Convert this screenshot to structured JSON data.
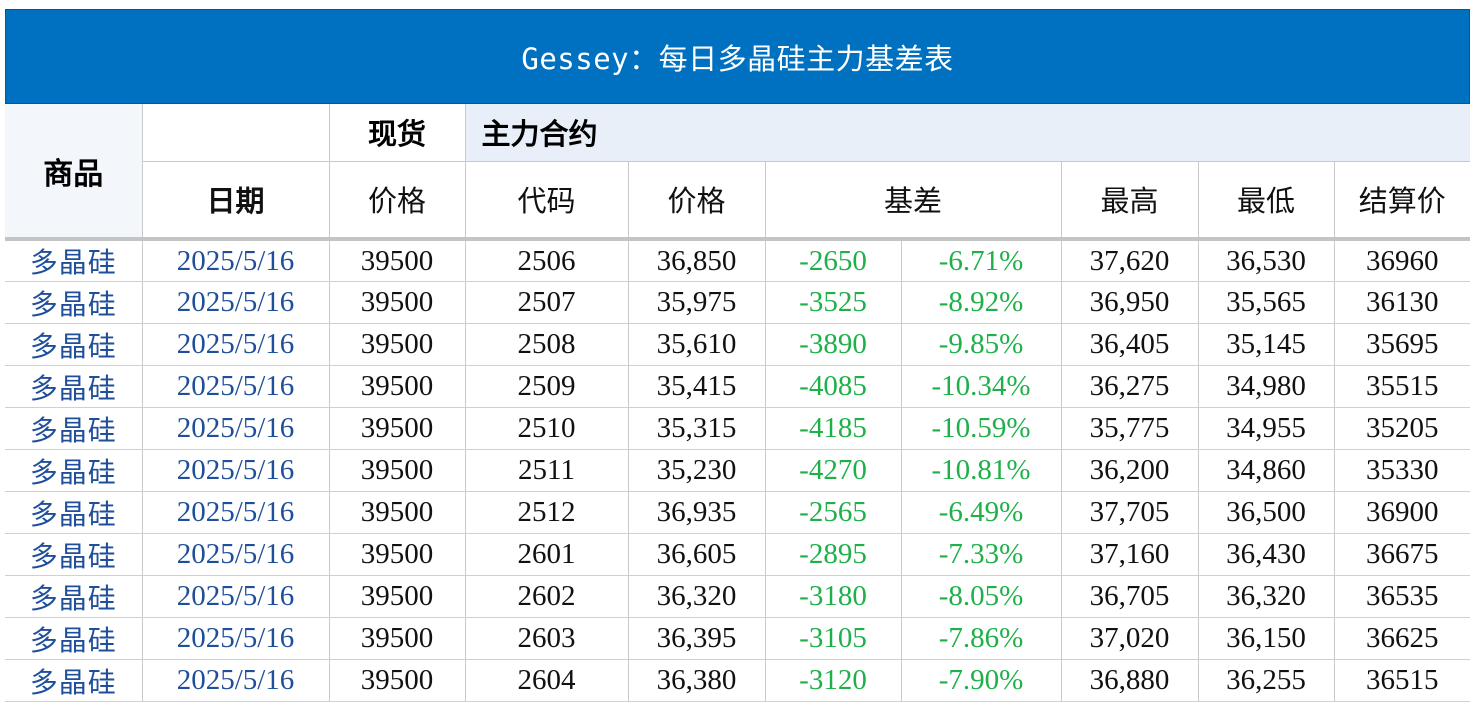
{
  "title": "Gessey：每日多晶硅主力基差表",
  "header": {
    "commodity": "商品",
    "spot_group": "现货",
    "main_group": "主力合约",
    "date": "日期",
    "spot_price": "价格",
    "code": "代码",
    "price": "价格",
    "basis": "基差",
    "high": "最高",
    "low": "最低",
    "settle": "结算价"
  },
  "rows": [
    {
      "name": "多晶硅",
      "date": "2025/5/16",
      "spot": "39500",
      "code": "2506",
      "price": "36,850",
      "basis": "-2650",
      "basis_pct": "-6.71%",
      "high": "37,620",
      "low": "36,530",
      "settle": "36960"
    },
    {
      "name": "多晶硅",
      "date": "2025/5/16",
      "spot": "39500",
      "code": "2507",
      "price": "35,975",
      "basis": "-3525",
      "basis_pct": "-8.92%",
      "high": "36,950",
      "low": "35,565",
      "settle": "36130"
    },
    {
      "name": "多晶硅",
      "date": "2025/5/16",
      "spot": "39500",
      "code": "2508",
      "price": "35,610",
      "basis": "-3890",
      "basis_pct": "-9.85%",
      "high": "36,405",
      "low": "35,145",
      "settle": "35695"
    },
    {
      "name": "多晶硅",
      "date": "2025/5/16",
      "spot": "39500",
      "code": "2509",
      "price": "35,415",
      "basis": "-4085",
      "basis_pct": "-10.34%",
      "high": "36,275",
      "low": "34,980",
      "settle": "35515"
    },
    {
      "name": "多晶硅",
      "date": "2025/5/16",
      "spot": "39500",
      "code": "2510",
      "price": "35,315",
      "basis": "-4185",
      "basis_pct": "-10.59%",
      "high": "35,775",
      "low": "34,955",
      "settle": "35205"
    },
    {
      "name": "多晶硅",
      "date": "2025/5/16",
      "spot": "39500",
      "code": "2511",
      "price": "35,230",
      "basis": "-4270",
      "basis_pct": "-10.81%",
      "high": "36,200",
      "low": "34,860",
      "settle": "35330"
    },
    {
      "name": "多晶硅",
      "date": "2025/5/16",
      "spot": "39500",
      "code": "2512",
      "price": "36,935",
      "basis": "-2565",
      "basis_pct": "-6.49%",
      "high": "37,705",
      "low": "36,500",
      "settle": "36900"
    },
    {
      "name": "多晶硅",
      "date": "2025/5/16",
      "spot": "39500",
      "code": "2601",
      "price": "36,605",
      "basis": "-2895",
      "basis_pct": "-7.33%",
      "high": "37,160",
      "low": "36,430",
      "settle": "36675"
    },
    {
      "name": "多晶硅",
      "date": "2025/5/16",
      "spot": "39500",
      "code": "2602",
      "price": "36,320",
      "basis": "-3180",
      "basis_pct": "-8.05%",
      "high": "36,705",
      "low": "36,320",
      "settle": "36535"
    },
    {
      "name": "多晶硅",
      "date": "2025/5/16",
      "spot": "39500",
      "code": "2603",
      "price": "36,395",
      "basis": "-3105",
      "basis_pct": "-7.86%",
      "high": "37,020",
      "low": "36,150",
      "settle": "36625"
    },
    {
      "name": "多晶硅",
      "date": "2025/5/16",
      "spot": "39500",
      "code": "2604",
      "price": "36,380",
      "basis": "-3120",
      "basis_pct": "-7.90%",
      "high": "36,880",
      "low": "36,255",
      "settle": "36515"
    }
  ],
  "colors": {
    "title_bg": "#0070c0",
    "name_text": "#1f4e9b",
    "basis_text": "#1fb04a"
  }
}
